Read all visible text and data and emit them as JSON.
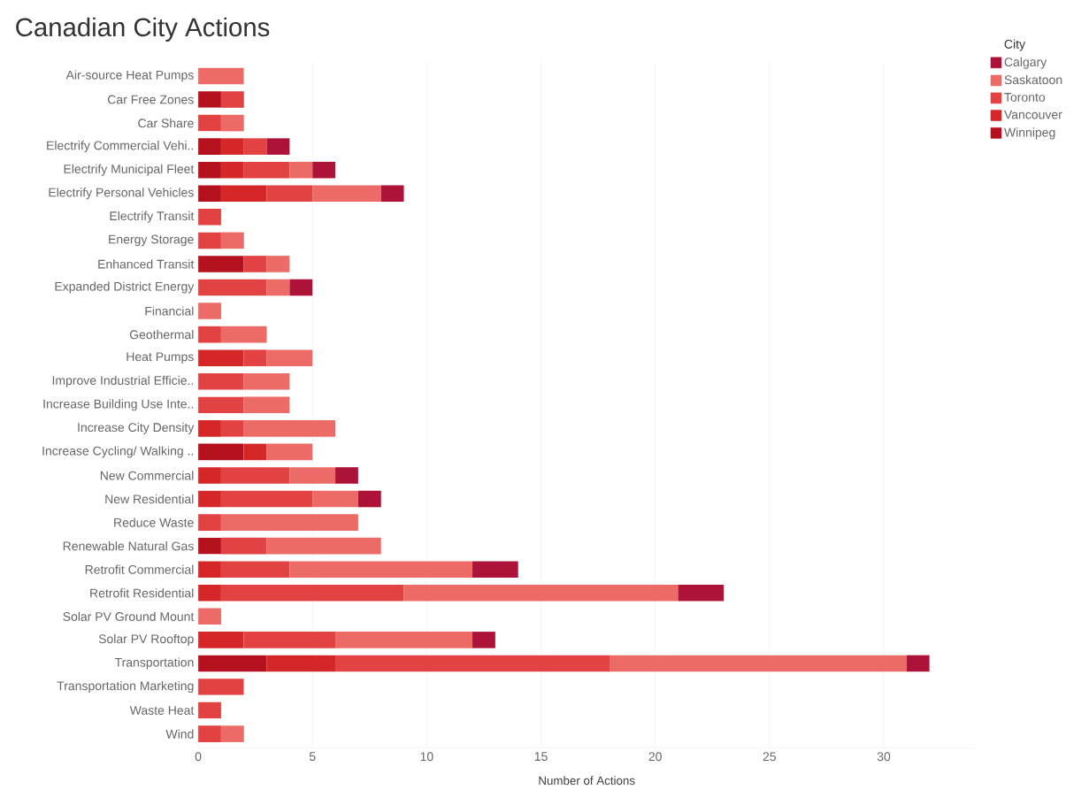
{
  "chart_data": {
    "type": "bar",
    "orientation": "horizontal",
    "stacked": true,
    "title": "Canadian City Actions",
    "xlabel": "Number of Actions",
    "legend_title": "City",
    "categories": [
      "Air-source Heat Pumps",
      "Car Free Zones",
      "Car Share",
      "Electrify Commercial Vehi..",
      "Electrify Municipal Fleet",
      "Electrify Personal Vehicles",
      "Electrify Transit",
      "Energy Storage",
      "Enhanced Transit",
      "Expanded District Energy",
      "Financial",
      "Geothermal",
      "Heat Pumps",
      "Improve Industrial Efficie..",
      "Increase Building Use Inte..",
      "Increase City Density",
      "Increase Cycling/ Walking ..",
      "New Commercial",
      "New Residential",
      "Reduce Waste",
      "Renewable Natural Gas",
      "Retrofit Commercial",
      "Retrofit Residential",
      "Solar PV Ground Mount",
      "Solar PV Rooftop",
      "Transportation",
      "Transportation Marketing",
      "Waste Heat",
      "Wind"
    ],
    "series": [
      {
        "name": "Winnipeg",
        "color": "#b5101e",
        "values": [
          null,
          1,
          null,
          1,
          1,
          1,
          null,
          null,
          2,
          null,
          null,
          null,
          null,
          null,
          null,
          null,
          2,
          null,
          null,
          null,
          1,
          null,
          null,
          null,
          null,
          3,
          null,
          null,
          null
        ]
      },
      {
        "name": "Vancouver",
        "color": "#d52728",
        "values": [
          null,
          null,
          null,
          1,
          1,
          2,
          null,
          null,
          null,
          null,
          null,
          null,
          2,
          null,
          null,
          1,
          1,
          1,
          1,
          null,
          null,
          1,
          1,
          null,
          2,
          3,
          null,
          null,
          null
        ]
      },
      {
        "name": "Toronto",
        "color": "#e34243",
        "values": [
          null,
          1,
          1,
          1,
          2,
          2,
          1,
          1,
          1,
          3,
          null,
          1,
          1,
          2,
          2,
          1,
          null,
          3,
          4,
          1,
          2,
          3,
          8,
          null,
          4,
          12,
          2,
          1,
          1
        ]
      },
      {
        "name": "Saskatoon",
        "color": "#ec6b67",
        "values": [
          2,
          null,
          1,
          null,
          1,
          3,
          null,
          1,
          1,
          1,
          1,
          2,
          2,
          2,
          2,
          4,
          2,
          2,
          2,
          6,
          5,
          8,
          12,
          1,
          6,
          13,
          null,
          null,
          1
        ]
      },
      {
        "name": "Calgary",
        "color": "#ad1238",
        "values": [
          null,
          null,
          null,
          1,
          1,
          1,
          null,
          null,
          null,
          1,
          null,
          null,
          null,
          null,
          null,
          null,
          null,
          1,
          1,
          null,
          null,
          2,
          2,
          null,
          1,
          1,
          null,
          null,
          null
        ]
      }
    ],
    "xlim": [
      0,
      34
    ],
    "xticks": [
      0,
      5,
      10,
      15,
      20,
      25,
      30
    ],
    "grid": "x",
    "legend": "top right"
  }
}
